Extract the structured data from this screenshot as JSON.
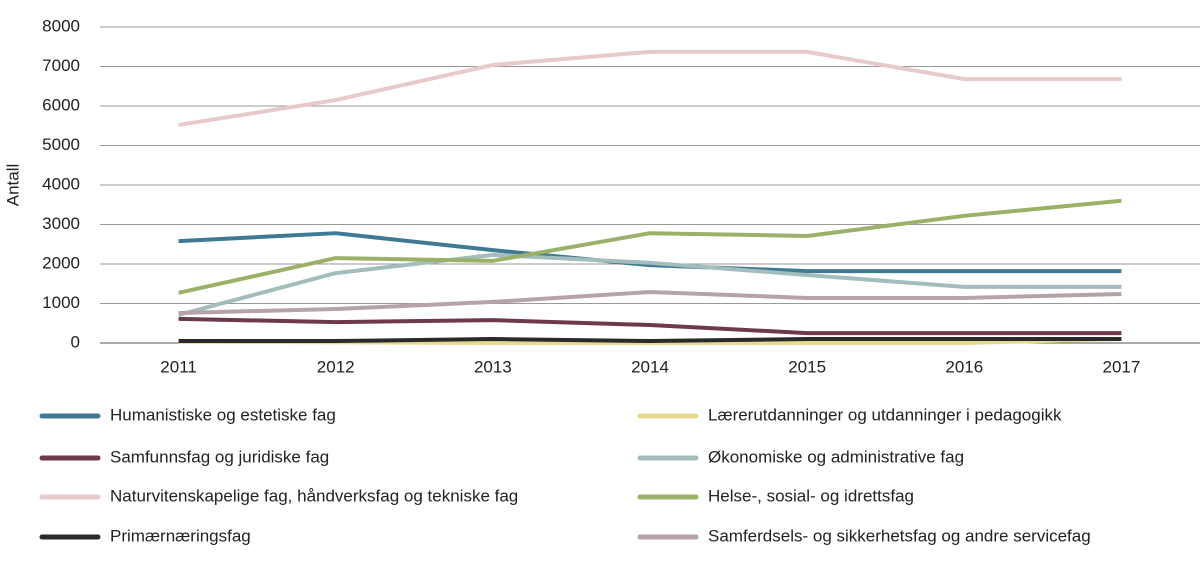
{
  "chart_data": {
    "type": "line",
    "y_label": "Antall",
    "categories": [
      "2011",
      "2012",
      "2013",
      "2014",
      "2015",
      "2016",
      "2017"
    ],
    "series": [
      {
        "name": "Humanistiske og estetiske fag",
        "color": "#3f7a95",
        "values": [
          2580,
          2780,
          2350,
          1970,
          1820,
          1820,
          1820
        ]
      },
      {
        "name": "Lærerutdanninger og utdanninger i pedagogikk",
        "color": "#e8d98e",
        "values": [
          30,
          20,
          0,
          0,
          0,
          0,
          100
        ]
      },
      {
        "name": "Samfunnsfag og juridiske fag",
        "color": "#6e3a4a",
        "values": [
          610,
          530,
          580,
          455,
          250,
          250,
          250
        ]
      },
      {
        "name": "Økonomiske og administrative fag",
        "color": "#a3bcbc",
        "values": [
          710,
          1770,
          2230,
          2030,
          1720,
          1420,
          1420
        ]
      },
      {
        "name": "Naturvitenskapelige fag, håndverksfag og tekniske fag",
        "color": "#e8c9cc",
        "values": [
          5520,
          6150,
          7040,
          7370,
          7370,
          6680,
          6680
        ]
      },
      {
        "name": "Helse-, sosial- og idrettsfag",
        "color": "#9bb167",
        "values": [
          1270,
          2150,
          2080,
          2780,
          2710,
          3220,
          3600
        ]
      },
      {
        "name": "Primærnæringsfag",
        "color": "#2a2a2a",
        "values": [
          50,
          50,
          100,
          50,
          100,
          100,
          100
        ]
      },
      {
        "name": "Samferdsels- og sikkerhetsfag og andre servicefag",
        "color": "#b6a3a6",
        "values": [
          760,
          860,
          1040,
          1290,
          1140,
          1140,
          1240
        ]
      }
    ],
    "ylim": [
      0,
      8000
    ],
    "yticks": [
      0,
      1000,
      2000,
      3000,
      4000,
      5000,
      6000,
      7000,
      8000
    ],
    "grid": true
  }
}
